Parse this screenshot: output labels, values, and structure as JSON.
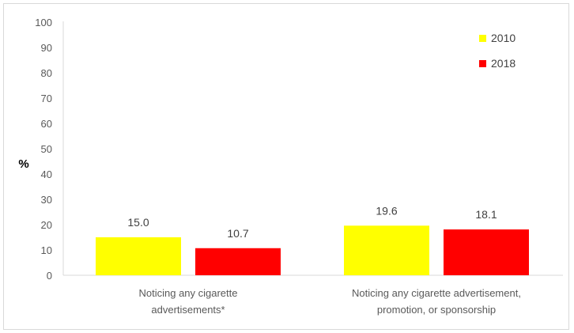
{
  "chart_data": {
    "type": "bar",
    "categories": [
      [
        "Noticing any cigarette",
        "advertisements*"
      ],
      [
        "Noticing any cigarette advertisement,",
        "promotion, or sponsorship"
      ]
    ],
    "series": [
      {
        "name": "2010",
        "values": [
          15.0,
          19.6
        ],
        "labels": [
          "15.0",
          "19.6"
        ],
        "color": "#ffff00"
      },
      {
        "name": "2018",
        "values": [
          10.7,
          18.1
        ],
        "labels": [
          "10.7",
          "18.1"
        ],
        "color": "#ff0000"
      }
    ],
    "title": "",
    "xlabel": "",
    "ylabel": "%",
    "ylim": [
      0,
      100
    ],
    "yticks": [
      "0",
      "10",
      "20",
      "30",
      "40",
      "50",
      "60",
      "70",
      "80",
      "90",
      "100"
    ],
    "grid": false,
    "legend": "top-right"
  }
}
